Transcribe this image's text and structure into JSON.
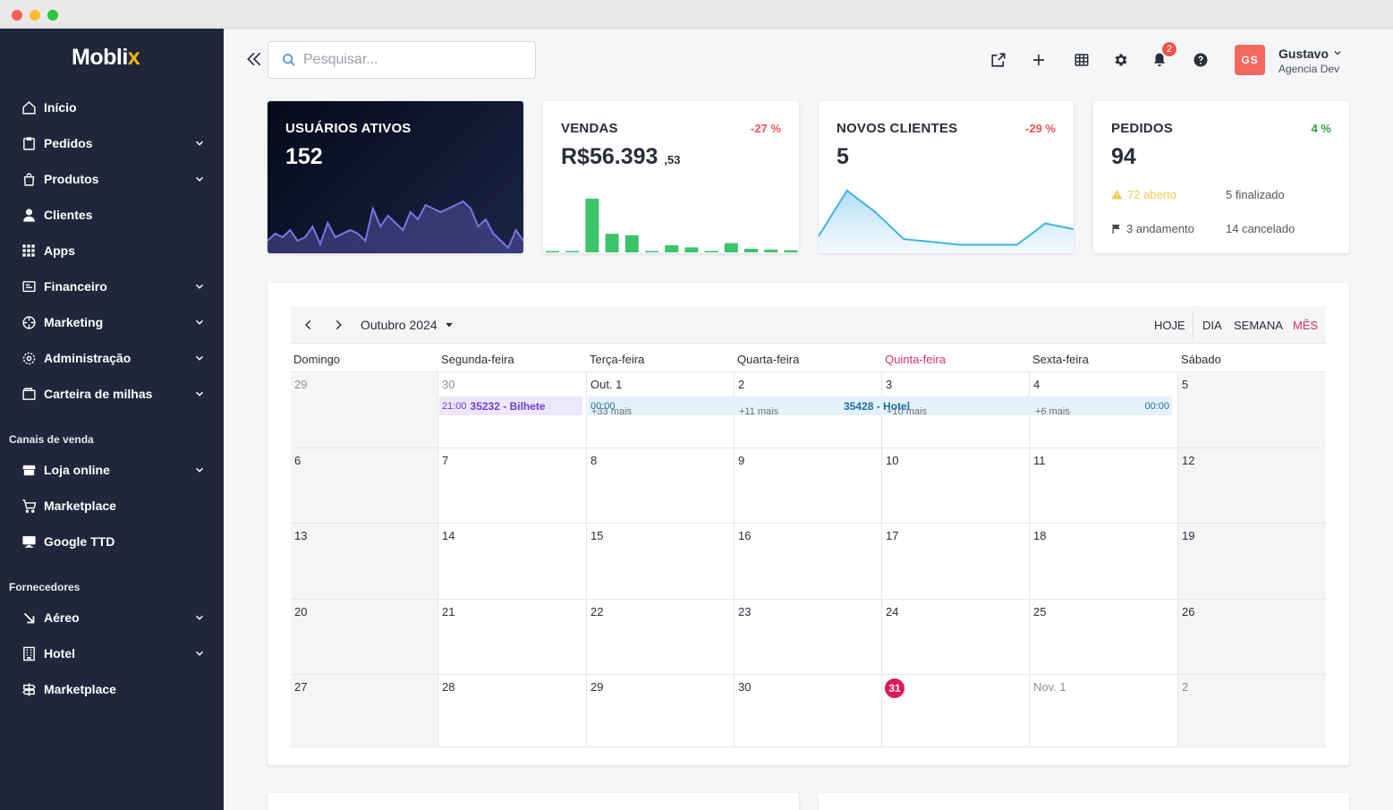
{
  "brand": {
    "name": "Mobli",
    "accent_letter": "x",
    "accent_color": "#f2b705"
  },
  "sidebar": {
    "items": [
      {
        "label": "Início",
        "icon": "home-icon",
        "has_chevron": false
      },
      {
        "label": "Pedidos",
        "icon": "clipboard-icon",
        "has_chevron": true
      },
      {
        "label": "Produtos",
        "icon": "shopping-bag-icon",
        "has_chevron": true
      },
      {
        "label": "Clientes",
        "icon": "user-icon",
        "has_chevron": false
      },
      {
        "label": "Apps",
        "icon": "grid-icon",
        "has_chevron": false
      },
      {
        "label": "Financeiro",
        "icon": "finance-icon",
        "has_chevron": true
      },
      {
        "label": "Marketing",
        "icon": "target-icon",
        "has_chevron": true
      },
      {
        "label": "Administração",
        "icon": "gear-icon",
        "has_chevron": true
      },
      {
        "label": "Carteira de milhas",
        "icon": "wallet-icon",
        "has_chevron": true
      }
    ],
    "section_sales": "Canais de venda",
    "sales_items": [
      {
        "label": "Loja online",
        "icon": "store-icon",
        "has_chevron": true
      },
      {
        "label": "Marketplace",
        "icon": "cart-icon",
        "has_chevron": false
      },
      {
        "label": "Google TTD",
        "icon": "monitor-icon",
        "has_chevron": false
      }
    ],
    "section_suppliers": "Fornecedores",
    "supplier_items": [
      {
        "label": "Aéreo",
        "icon": "arrow-down-right-icon",
        "has_chevron": true
      },
      {
        "label": "Hotel",
        "icon": "building-icon",
        "has_chevron": true
      },
      {
        "label": "Marketplace",
        "icon": "signpost-icon",
        "has_chevron": false
      }
    ]
  },
  "topbar": {
    "search_placeholder": "Pesquisar...",
    "notification_count": "2",
    "user": {
      "initials": "GS",
      "name": "Gustavo",
      "org": "Agencia Dev"
    }
  },
  "stats": {
    "usuarios": {
      "title": "USUÁRIOS ATIVOS",
      "value": "152"
    },
    "vendas": {
      "title": "VENDAS",
      "value": "R$56.393",
      "cents": ",53",
      "pct": "-27 %",
      "pct_color": "#ef5350"
    },
    "clientes": {
      "title": "NOVOS CLIENTES",
      "value": "5",
      "pct": "-29 %",
      "pct_color": "#ef5350"
    },
    "pedidos": {
      "title": "PEDIDOS",
      "value": "94",
      "pct": "4 %",
      "pct_color": "#2e9e3e",
      "aberto": "72 aberto",
      "finalizado": "5 finalizado",
      "andamento": "3 andamento",
      "cancelado": "14 cancelado"
    }
  },
  "sparklines": {
    "usuarios_series": [
      3,
      5,
      4,
      6,
      3,
      4,
      7,
      2,
      8,
      4,
      5,
      6,
      5,
      3,
      12,
      7,
      10,
      8,
      6,
      11,
      9,
      13,
      12,
      11,
      12,
      13,
      14,
      12,
      7,
      9,
      5,
      3,
      1,
      6,
      3
    ],
    "vendas_bars": [
      0.1,
      0.1,
      7.5,
      2.6,
      2.4,
      0.1,
      1.0,
      0.7,
      0.2,
      1.3,
      0.5,
      0.4,
      0.3
    ],
    "clientes_series": [
      1.2,
      4.4,
      2.9,
      1.0,
      0.8,
      0.6,
      0.6,
      0.6,
      2.1,
      1.7
    ]
  },
  "calendar": {
    "month_label": "Outubro 2024",
    "views": [
      "HOJE",
      "DIA",
      "SEMANA",
      "MÊS"
    ],
    "active_view": "MÊS",
    "weekdays": [
      "Domingo",
      "Segunda-feira",
      "Terça-feira",
      "Quarta-feira",
      "Quinta-feira",
      "Sexta-feira",
      "Sábado"
    ],
    "today_weekday_index": 4,
    "weeks": [
      [
        "29",
        "30",
        "Out. 1",
        "2",
        "3",
        "4",
        "5"
      ],
      [
        "6",
        "7",
        "8",
        "9",
        "10",
        "11",
        "12"
      ],
      [
        "13",
        "14",
        "15",
        "16",
        "17",
        "18",
        "19"
      ],
      [
        "20",
        "21",
        "22",
        "23",
        "24",
        "25",
        "26"
      ],
      [
        "27",
        "28",
        "29",
        "30",
        "31",
        "Nov. 1",
        "2"
      ]
    ],
    "today": "31",
    "events": {
      "bilhete": {
        "time": "21:00",
        "title": "35232 - Bilhete"
      },
      "hotel": {
        "time_start": "00:00",
        "title": "35428 - Hotel",
        "time_end": "00:00"
      }
    },
    "more": [
      "+33 mais",
      "+11 mais",
      "+10 mais",
      "+6 mais"
    ]
  }
}
